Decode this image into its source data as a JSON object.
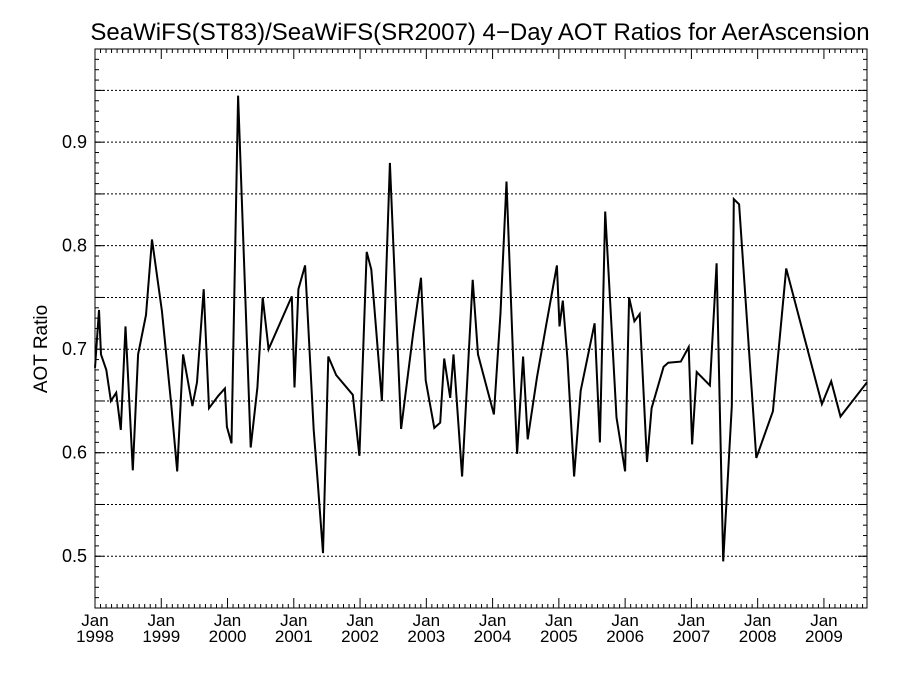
{
  "chart_data": {
    "type": "line",
    "title": "SeaWiFS(ST83)/SeaWiFS(SR2007) 4−Day AOT Ratios for AerAscension",
    "xlabel": "",
    "ylabel": "AOT Ratio",
    "xlim": [
      1998.0,
      2009.65
    ],
    "ylim": [
      0.45,
      0.99
    ],
    "yticks_major": [
      0.5,
      0.6,
      0.7,
      0.8,
      0.9
    ],
    "ytick_labels": [
      "0.5",
      "0.6",
      "0.7",
      "0.8",
      "0.9"
    ],
    "yticks_minor_step": 0.05,
    "grid": "horizontal dotted at every 0.05",
    "xticks": [
      {
        "x": 1998,
        "month": "Jan",
        "year": "1998"
      },
      {
        "x": 1999,
        "month": "Jan",
        "year": "1999"
      },
      {
        "x": 2000,
        "month": "Jan",
        "year": "2000"
      },
      {
        "x": 2001,
        "month": "Jan",
        "year": "2001"
      },
      {
        "x": 2002,
        "month": "Jan",
        "year": "2002"
      },
      {
        "x": 2003,
        "month": "Jan",
        "year": "2003"
      },
      {
        "x": 2004,
        "month": "Jan",
        "year": "2004"
      },
      {
        "x": 2005,
        "month": "Jan",
        "year": "2005"
      },
      {
        "x": 2006,
        "month": "Jan",
        "year": "2006"
      },
      {
        "x": 2007,
        "month": "Jan",
        "year": "2007"
      },
      {
        "x": 2008,
        "month": "Jan",
        "year": "2008"
      },
      {
        "x": 2009,
        "month": "Jan",
        "year": "2009"
      }
    ],
    "series": [
      {
        "color": "#000000",
        "points": [
          [
            1998.0,
            0.682
          ],
          [
            1998.06,
            0.738
          ],
          [
            1998.09,
            0.695
          ],
          [
            1998.17,
            0.68
          ],
          [
            1998.24,
            0.65
          ],
          [
            1998.32,
            0.658
          ],
          [
            1998.39,
            0.622
          ],
          [
            1998.46,
            0.722
          ],
          [
            1998.57,
            0.583
          ],
          [
            1998.65,
            0.695
          ],
          [
            1998.77,
            0.733
          ],
          [
            1998.86,
            0.806
          ],
          [
            1999.01,
            0.737
          ],
          [
            1999.15,
            0.647
          ],
          [
            1999.24,
            0.582
          ],
          [
            1999.33,
            0.695
          ],
          [
            1999.47,
            0.645
          ],
          [
            1999.54,
            0.668
          ],
          [
            1999.64,
            0.758
          ],
          [
            1999.72,
            0.643
          ],
          [
            1999.86,
            0.655
          ],
          [
            1999.96,
            0.662
          ],
          [
            1999.99,
            0.625
          ],
          [
            2000.06,
            0.609
          ],
          [
            2000.16,
            0.945
          ],
          [
            2000.35,
            0.605
          ],
          [
            2000.45,
            0.663
          ],
          [
            2000.53,
            0.75
          ],
          [
            2000.62,
            0.7
          ],
          [
            2000.97,
            0.751
          ],
          [
            2001.01,
            0.663
          ],
          [
            2001.07,
            0.758
          ],
          [
            2001.17,
            0.781
          ],
          [
            2001.3,
            0.622
          ],
          [
            2001.36,
            0.572
          ],
          [
            2001.44,
            0.503
          ],
          [
            2001.52,
            0.693
          ],
          [
            2001.64,
            0.675
          ],
          [
            2001.89,
            0.656
          ],
          [
            2001.99,
            0.597
          ],
          [
            2002.1,
            0.794
          ],
          [
            2002.17,
            0.777
          ],
          [
            2002.33,
            0.65
          ],
          [
            2002.45,
            0.88
          ],
          [
            2002.62,
            0.623
          ],
          [
            2002.8,
            0.715
          ],
          [
            2002.92,
            0.769
          ],
          [
            2002.99,
            0.67
          ],
          [
            2003.12,
            0.624
          ],
          [
            2003.21,
            0.629
          ],
          [
            2003.27,
            0.691
          ],
          [
            2003.36,
            0.653
          ],
          [
            2003.41,
            0.695
          ],
          [
            2003.54,
            0.577
          ],
          [
            2003.7,
            0.767
          ],
          [
            2003.78,
            0.695
          ],
          [
            2004.02,
            0.637
          ],
          [
            2004.12,
            0.735
          ],
          [
            2004.21,
            0.862
          ],
          [
            2004.32,
            0.674
          ],
          [
            2004.37,
            0.599
          ],
          [
            2004.46,
            0.693
          ],
          [
            2004.53,
            0.613
          ],
          [
            2004.67,
            0.673
          ],
          [
            2004.81,
            0.724
          ],
          [
            2004.97,
            0.781
          ],
          [
            2005.01,
            0.722
          ],
          [
            2005.06,
            0.747
          ],
          [
            2005.13,
            0.69
          ],
          [
            2005.23,
            0.577
          ],
          [
            2005.33,
            0.66
          ],
          [
            2005.54,
            0.725
          ],
          [
            2005.62,
            0.61
          ],
          [
            2005.7,
            0.833
          ],
          [
            2005.87,
            0.634
          ],
          [
            2006.0,
            0.582
          ],
          [
            2006.06,
            0.75
          ],
          [
            2006.14,
            0.727
          ],
          [
            2006.22,
            0.734
          ],
          [
            2006.33,
            0.591
          ],
          [
            2006.4,
            0.643
          ],
          [
            2006.58,
            0.683
          ],
          [
            2006.65,
            0.687
          ],
          [
            2006.84,
            0.688
          ],
          [
            2006.96,
            0.702
          ],
          [
            2007.01,
            0.608
          ],
          [
            2007.08,
            0.678
          ],
          [
            2007.28,
            0.665
          ],
          [
            2007.38,
            0.783
          ],
          [
            2007.48,
            0.495
          ],
          [
            2007.61,
            0.645
          ],
          [
            2007.64,
            0.845
          ],
          [
            2007.72,
            0.84
          ],
          [
            2007.98,
            0.595
          ],
          [
            2008.23,
            0.64
          ],
          [
            2008.43,
            0.778
          ],
          [
            2008.97,
            0.647
          ],
          [
            2009.11,
            0.669
          ],
          [
            2009.25,
            0.635
          ],
          [
            2009.65,
            0.668
          ]
        ]
      }
    ]
  }
}
